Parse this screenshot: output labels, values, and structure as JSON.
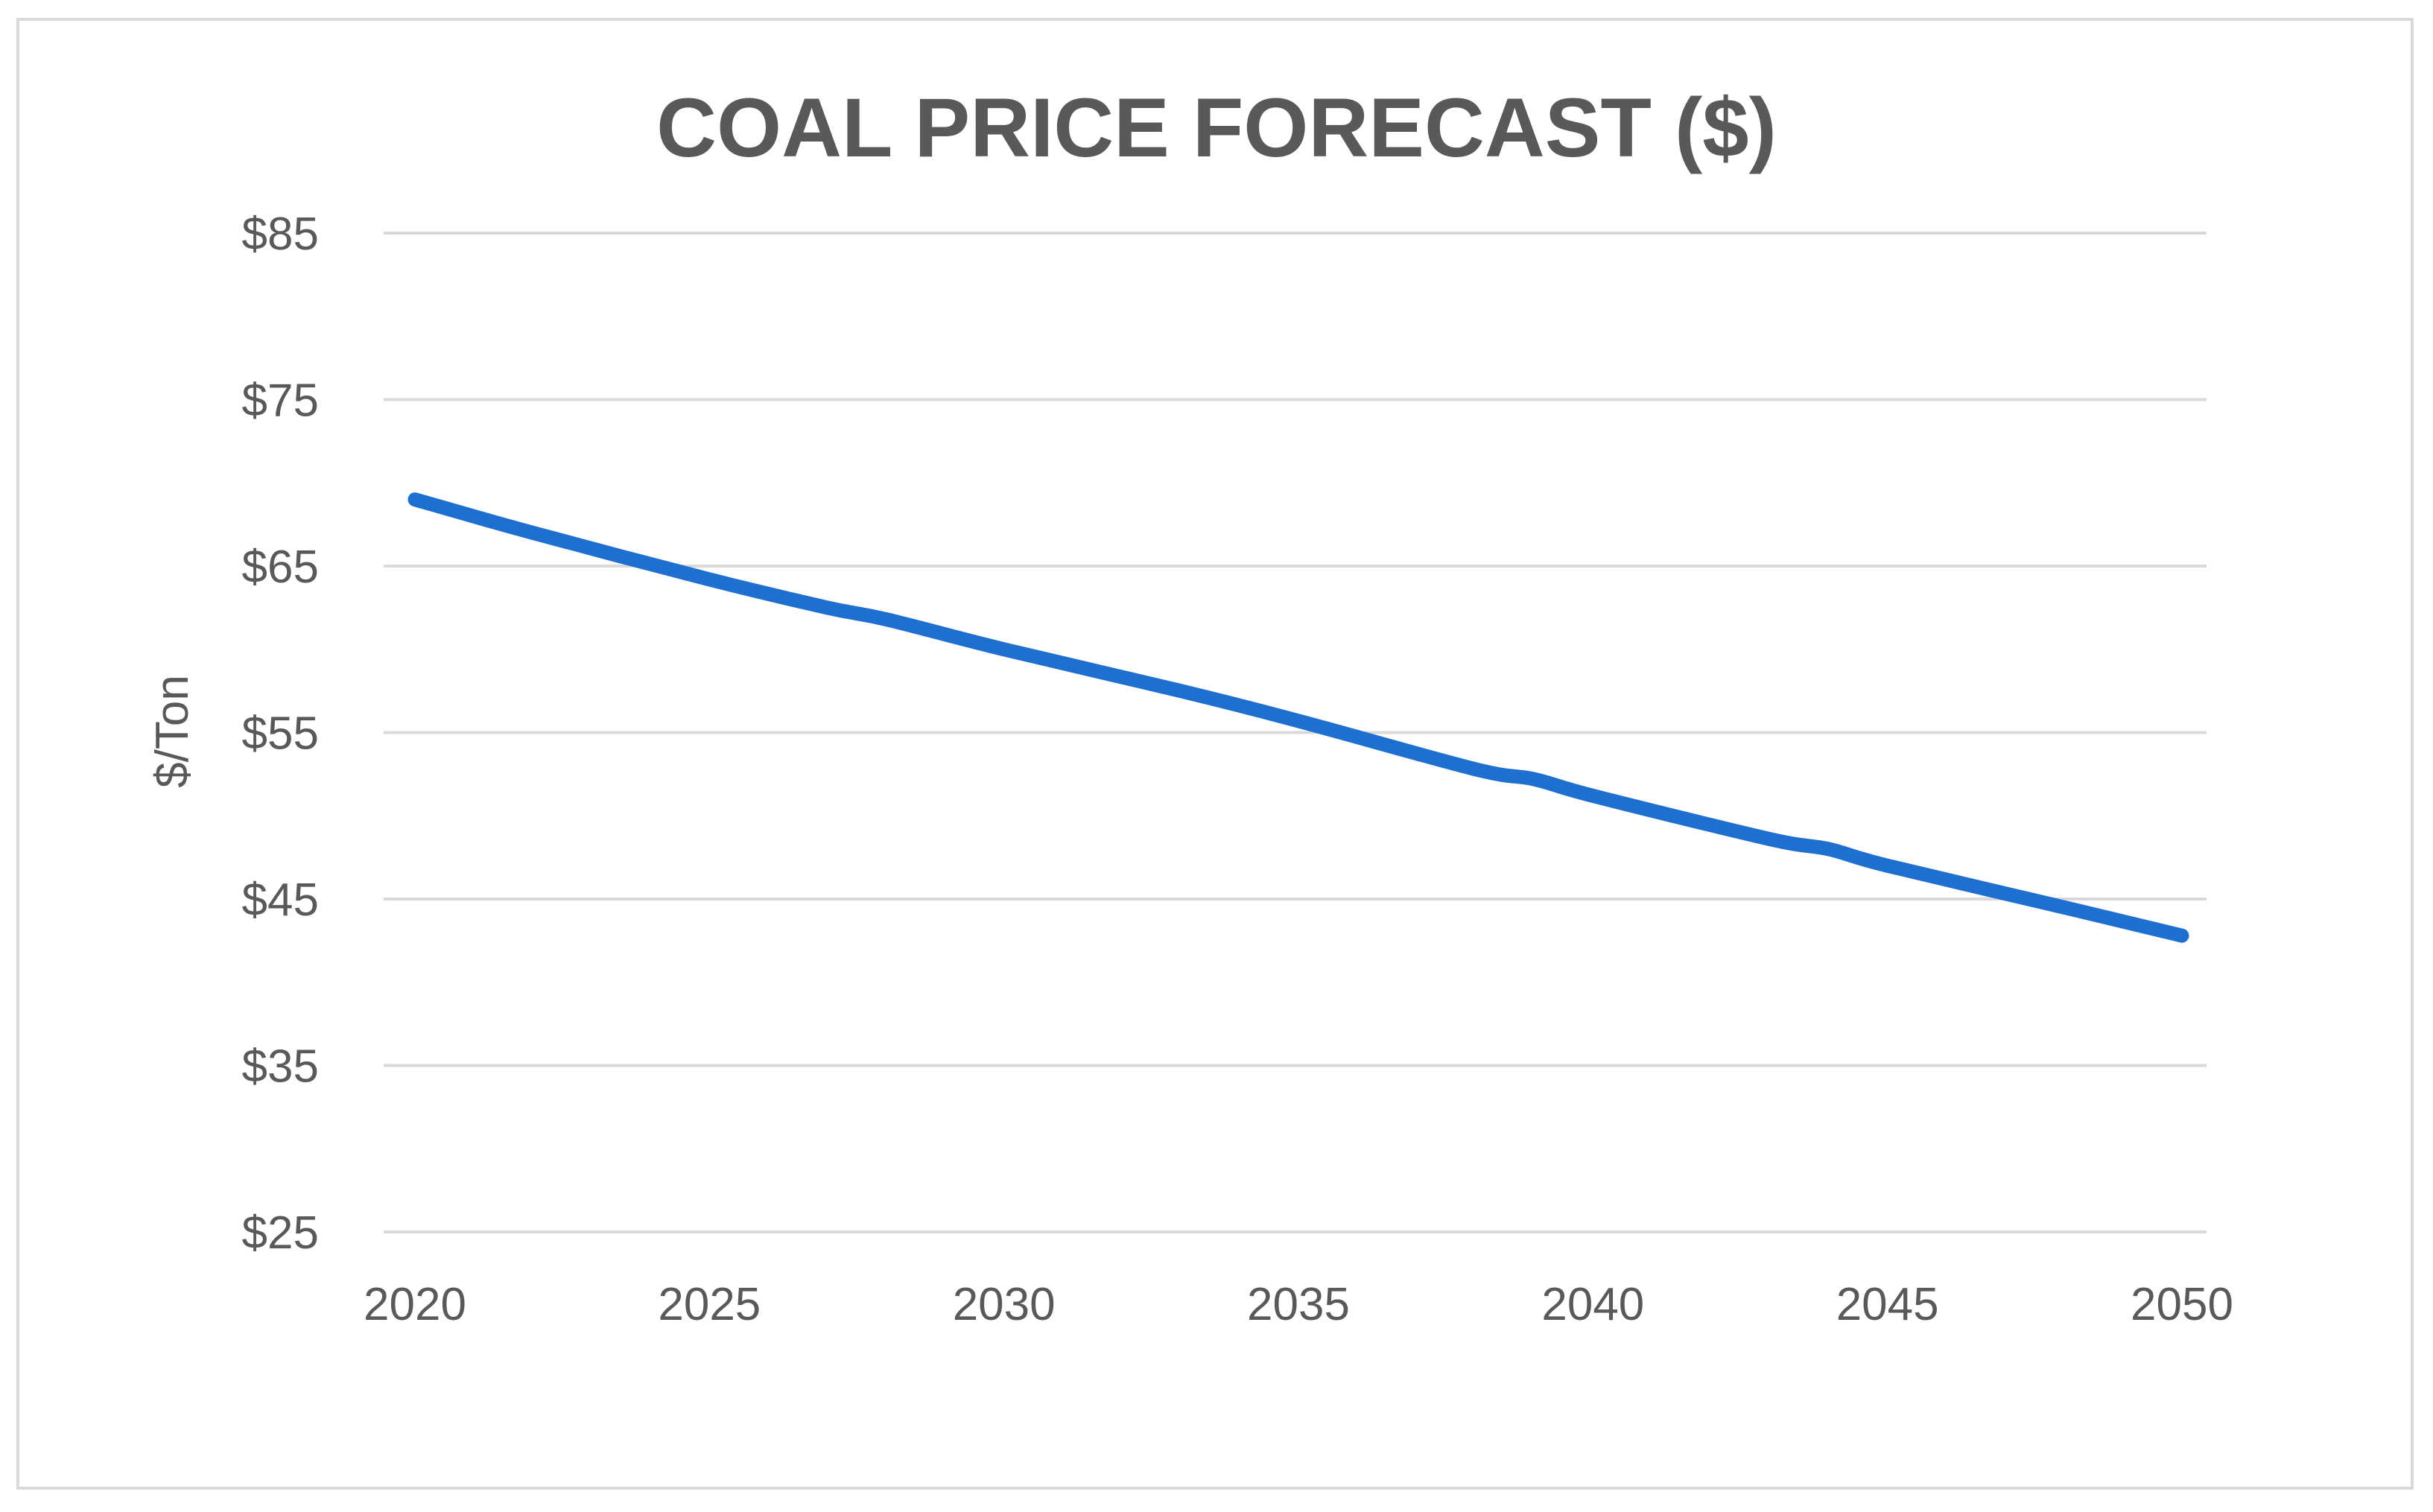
{
  "chart_data": {
    "type": "line",
    "title": "COAL PRICE FORECAST ($)",
    "xlabel": "",
    "ylabel": "$/Ton",
    "x": [
      2020,
      2025,
      2030,
      2035,
      2040,
      2045,
      2050
    ],
    "x_tick_labels": [
      "2020",
      "2025",
      "2030",
      "2035",
      "2040",
      "2045",
      "2050"
    ],
    "y_tick_labels": [
      "$85",
      "$75",
      "$65",
      "$55",
      "$45",
      "$35",
      "$25"
    ],
    "y_ticks": [
      85,
      75,
      65,
      55,
      45,
      35,
      25
    ],
    "xlim": [
      2020,
      2050
    ],
    "ylim": [
      25,
      85
    ],
    "grid": true,
    "legend": "none",
    "series": [
      {
        "name": "Coal Price",
        "color": "#1f6fd1",
        "x": [
          2020,
          2022,
          2025,
          2027,
          2028,
          2030,
          2033,
          2035,
          2038,
          2039,
          2040,
          2043,
          2044,
          2045,
          2048,
          2050
        ],
        "values": [
          69,
          67,
          64.2,
          62.5,
          61.8,
          60,
          57.5,
          55.7,
          52.8,
          52.2,
          51.2,
          48.6,
          48,
          47,
          44.5,
          42.8
        ]
      }
    ]
  }
}
